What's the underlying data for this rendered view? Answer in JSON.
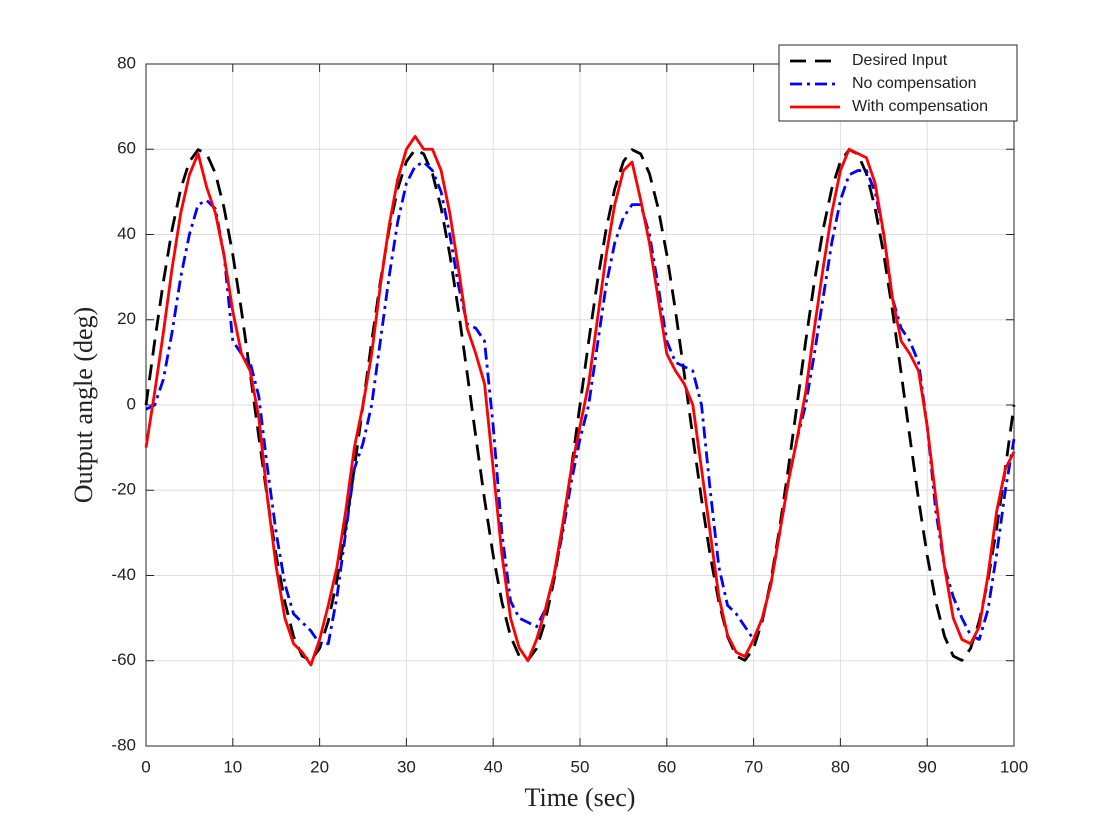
{
  "chart_data": {
    "type": "line",
    "xlabel": "Time (sec)",
    "ylabel": "Output angle (deg)",
    "x": [
      0,
      1,
      2,
      3,
      4,
      5,
      6,
      7,
      8,
      9,
      10,
      11,
      12,
      13,
      14,
      15,
      16,
      17,
      18,
      19,
      20,
      21,
      22,
      23,
      24,
      25,
      26,
      27,
      28,
      29,
      30,
      31,
      32,
      33,
      34,
      35,
      36,
      37,
      38,
      39,
      40,
      41,
      42,
      43,
      44,
      45,
      46,
      47,
      48,
      49,
      50,
      51,
      52,
      53,
      54,
      55,
      56,
      57,
      58,
      59,
      60,
      61,
      62,
      63,
      64,
      65,
      66,
      67,
      68,
      69,
      70,
      71,
      72,
      73,
      74,
      75,
      76,
      77,
      78,
      79,
      80,
      81,
      82,
      83,
      84,
      85,
      86,
      87,
      88,
      89,
      90,
      91,
      92,
      93,
      94,
      95,
      96,
      97,
      98,
      99,
      100
    ],
    "series": [
      {
        "name": "Desired Input",
        "color": "#000000",
        "linestyle": "dashed",
        "values": [
          0,
          14.9,
          28.9,
          41.1,
          50.7,
          57.1,
          59.9,
          58.9,
          54.3,
          46.2,
          35.3,
          22.1,
          7.5,
          -7.5,
          -22.1,
          -35.3,
          -46.2,
          -54.3,
          -58.9,
          -59.9,
          -57.1,
          -50.7,
          -41.1,
          -28.9,
          -14.9,
          0,
          14.9,
          28.9,
          41.1,
          50.7,
          57.1,
          59.9,
          58.9,
          54.3,
          46.2,
          35.3,
          22.1,
          7.5,
          -7.5,
          -22.1,
          -35.3,
          -46.2,
          -54.3,
          -58.9,
          -59.9,
          -57.1,
          -50.7,
          -41.1,
          -28.9,
          -14.9,
          0,
          14.9,
          28.9,
          41.1,
          50.7,
          57.1,
          59.9,
          58.9,
          54.3,
          46.2,
          35.3,
          22.1,
          7.5,
          -7.5,
          -22.1,
          -35.3,
          -46.2,
          -54.3,
          -58.9,
          -59.9,
          -57.1,
          -50.7,
          -41.1,
          -28.9,
          -14.9,
          0,
          14.9,
          28.9,
          41.1,
          50.7,
          57.1,
          59.9,
          58.9,
          54.3,
          46.2,
          35.3,
          22.1,
          7.5,
          -7.5,
          -22.1,
          -35.3,
          -46.2,
          -54.3,
          -58.9,
          -59.9,
          -57.1,
          -50.7,
          -41.1,
          -28.9,
          -14.9,
          0
        ]
      },
      {
        "name": "No compensation",
        "color": "#0000ff",
        "linestyle": "dashdot",
        "values": [
          -1,
          0,
          6,
          17,
          30,
          40,
          47,
          48,
          46,
          35,
          15,
          12,
          10,
          2,
          -15,
          -30,
          -42,
          -49,
          -51,
          -53,
          -56,
          -56,
          -45,
          -30,
          -15,
          -9,
          0,
          15,
          30,
          43,
          52,
          56,
          57,
          55,
          50,
          40,
          28,
          19,
          18,
          15,
          -5,
          -30,
          -46,
          -50,
          -51,
          -52,
          -48,
          -40,
          -30,
          -18,
          -8,
          0,
          14,
          28,
          38,
          44,
          47,
          47,
          40,
          28,
          15,
          10,
          9,
          8,
          0,
          -20,
          -38,
          -47,
          -49,
          -52,
          -55,
          -50,
          -42,
          -30,
          -18,
          -8,
          0,
          12,
          25,
          38,
          48,
          54,
          55,
          55,
          50,
          40,
          25,
          18,
          15,
          10,
          -5,
          -25,
          -38,
          -45,
          -50,
          -54,
          -55,
          -48,
          -35,
          -20,
          -8
        ]
      },
      {
        "name": "With compensation",
        "color": "#ff0000",
        "linestyle": "solid",
        "values": [
          -10,
          3,
          17,
          32,
          45,
          54,
          59,
          51,
          45,
          35,
          22,
          12,
          8,
          -3,
          -22,
          -38,
          -50,
          -56,
          -58,
          -61,
          -55,
          -47,
          -38,
          -25,
          -10,
          0,
          12,
          28,
          42,
          53,
          60,
          63,
          60,
          60,
          55,
          45,
          32,
          18,
          12,
          5,
          -15,
          -35,
          -50,
          -57,
          -60,
          -55,
          -48,
          -40,
          -28,
          -15,
          -5,
          5,
          20,
          35,
          47,
          55,
          57,
          48,
          38,
          25,
          12,
          8,
          5,
          0,
          -15,
          -30,
          -45,
          -54,
          -58,
          -59,
          -55,
          -50,
          -42,
          -30,
          -18,
          -8,
          3,
          18,
          32,
          45,
          55,
          60,
          59,
          58,
          52,
          40,
          25,
          15,
          12,
          8,
          -5,
          -22,
          -38,
          -50,
          -55,
          -56,
          -52,
          -40,
          -25,
          -15,
          -11
        ]
      }
    ],
    "xlim": [
      0,
      100
    ],
    "xticks": [
      0,
      10,
      20,
      30,
      40,
      50,
      60,
      70,
      80,
      90,
      100
    ],
    "ylim": [
      -80,
      80
    ],
    "yticks": [
      -80,
      -60,
      -40,
      -20,
      0,
      20,
      40,
      60,
      80
    ],
    "grid": true,
    "legend": "upper right"
  }
}
